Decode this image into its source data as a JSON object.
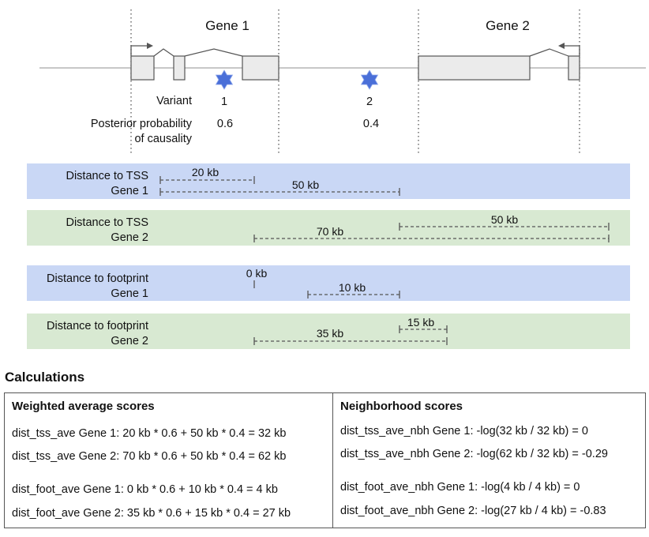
{
  "genes": [
    {
      "label": "Gene 1",
      "tss_direction": "right"
    },
    {
      "label": "Gene 2",
      "tss_direction": "left"
    }
  ],
  "variant_row_label": "Variant",
  "posterior_label_line1": "Posterior probability",
  "posterior_label_line2": "of causality",
  "variants": [
    {
      "id": "1",
      "posterior": "0.6"
    },
    {
      "id": "2",
      "posterior": "0.4"
    }
  ],
  "colors": {
    "band_gene1": "#c9d7f5",
    "band_gene2": "#d8e9d2",
    "star": "#4a6fd8",
    "exon_fill": "#ebebeb",
    "dash": "#555555"
  },
  "bands": [
    {
      "label_line1": "Distance to TSS",
      "label_line2": "Gene 1",
      "measures": [
        {
          "label": "20 kb"
        },
        {
          "label": "50 kb"
        }
      ]
    },
    {
      "label_line1": "Distance to TSS",
      "label_line2": "Gene 2",
      "measures": [
        {
          "label": "50 kb"
        },
        {
          "label": "70 kb"
        }
      ]
    },
    {
      "label_line1": "Distance to footprint",
      "label_line2": "Gene 1",
      "measures": [
        {
          "label": "0 kb"
        },
        {
          "label": "10 kb"
        }
      ]
    },
    {
      "label_line1": "Distance to footprint",
      "label_line2": "Gene 2",
      "measures": [
        {
          "label": "15 kb"
        },
        {
          "label": "35 kb"
        }
      ]
    }
  ],
  "calculations": {
    "title": "Calculations",
    "weighted": {
      "header": "Weighted average scores",
      "lines": [
        "dist_tss_ave Gene 1:  20 kb * 0.6 + 50 kb * 0.4 = 32 kb",
        "dist_tss_ave Gene 2:  70 kb * 0.6 + 50 kb * 0.4 = 62 kb",
        "dist_foot_ave Gene 1:  0 kb * 0.6 + 10 kb * 0.4 = 4 kb",
        "dist_foot_ave Gene 2:  35 kb * 0.6 + 15 kb * 0.4 = 27 kb"
      ]
    },
    "neighborhood": {
      "header": "Neighborhood scores",
      "lines": [
        "dist_tss_ave_nbh Gene 1:  -log(32 kb / 32 kb) = 0",
        "dist_tss_ave_nbh Gene 2:  -log(62 kb / 32 kb) = -0.29",
        "dist_foot_ave_nbh Gene 1:  -log(4 kb / 4 kb) = 0",
        "dist_foot_ave_nbh Gene 2:  -log(27 kb / 4 kb) = -0.83"
      ]
    }
  }
}
